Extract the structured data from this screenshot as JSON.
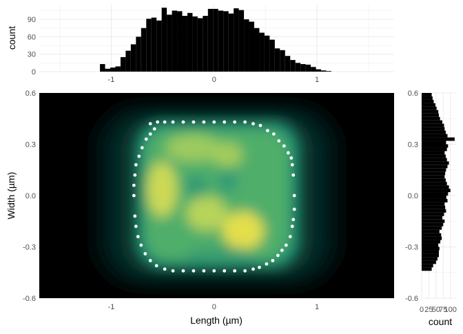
{
  "chart_data": [
    {
      "name": "top-marginal",
      "type": "bar",
      "title": "",
      "xlabel": "",
      "ylabel": "count",
      "xlim": [
        -1.7,
        1.75
      ],
      "ylim": [
        0,
        115
      ],
      "xticks": [
        -1,
        0,
        1
      ],
      "xtick_labels": [
        "-1",
        "0",
        "1"
      ],
      "yticks": [
        0,
        30,
        60,
        90
      ],
      "ytick_labels": [
        "0",
        "30",
        "60",
        "90"
      ],
      "grid": true,
      "bin_edges_start": -1.11,
      "bin_width": 0.05,
      "values": [
        13,
        5,
        7,
        9,
        25,
        36,
        47,
        60,
        75,
        91,
        93,
        88,
        110,
        98,
        105,
        104,
        96,
        101,
        95,
        92,
        96,
        108,
        108,
        105,
        104,
        100,
        109,
        106,
        90,
        86,
        75,
        67,
        62,
        55,
        40,
        37,
        27,
        20,
        15,
        13,
        12,
        8,
        4,
        2,
        1
      ]
    },
    {
      "name": "main-density",
      "type": "heatmap",
      "title": "",
      "xlabel": "Length (µm)",
      "ylabel": "Width (µm)",
      "xlim": [
        -1.7,
        1.75
      ],
      "ylim": [
        -0.6,
        0.6
      ],
      "xticks": [
        -1,
        0,
        1
      ],
      "xtick_labels": [
        "-1",
        "0",
        "1"
      ],
      "yticks": [
        0.6,
        0.3,
        0.0,
        -0.3,
        -0.6
      ],
      "ytick_labels": [
        "0.6",
        "0.3",
        "0.0",
        "-0.3",
        "-0.6"
      ],
      "colormap": [
        "#000000",
        "#0a4a3e",
        "#1f9a78",
        "#5cc06a",
        "#b4d65a",
        "#e8e14a"
      ],
      "outline_points": [
        [
          -0.62,
          0.42
        ],
        [
          -0.55,
          0.43
        ],
        [
          -0.48,
          0.43
        ],
        [
          -0.4,
          0.43
        ],
        [
          -0.3,
          0.43
        ],
        [
          -0.2,
          0.43
        ],
        [
          -0.1,
          0.43
        ],
        [
          0.0,
          0.43
        ],
        [
          0.1,
          0.43
        ],
        [
          0.2,
          0.43
        ],
        [
          0.3,
          0.43
        ],
        [
          0.38,
          0.42
        ],
        [
          0.45,
          0.41
        ],
        [
          0.52,
          0.38
        ],
        [
          0.58,
          0.36
        ],
        [
          0.63,
          0.32
        ],
        [
          0.68,
          0.29
        ],
        [
          0.72,
          0.25
        ],
        [
          0.75,
          0.22
        ],
        [
          0.76,
          0.18
        ],
        [
          0.77,
          0.12
        ],
        [
          0.78,
          0.0
        ],
        [
          0.78,
          -0.08
        ],
        [
          0.77,
          -0.14
        ],
        [
          0.76,
          -0.18
        ],
        [
          0.74,
          -0.24
        ],
        [
          0.7,
          -0.29
        ],
        [
          0.66,
          -0.32
        ],
        [
          0.62,
          -0.35
        ],
        [
          0.57,
          -0.38
        ],
        [
          0.51,
          -0.4
        ],
        [
          0.44,
          -0.42
        ],
        [
          0.38,
          -0.43
        ],
        [
          0.3,
          -0.44
        ],
        [
          0.2,
          -0.44
        ],
        [
          0.1,
          -0.44
        ],
        [
          0.0,
          -0.44
        ],
        [
          -0.1,
          -0.44
        ],
        [
          -0.2,
          -0.44
        ],
        [
          -0.3,
          -0.44
        ],
        [
          -0.4,
          -0.44
        ],
        [
          -0.48,
          -0.43
        ],
        [
          -0.56,
          -0.41
        ],
        [
          -0.62,
          -0.38
        ],
        [
          -0.67,
          -0.34
        ],
        [
          -0.71,
          -0.29
        ],
        [
          -0.74,
          -0.24
        ],
        [
          -0.76,
          -0.18
        ],
        [
          -0.77,
          -0.12
        ],
        [
          -0.78,
          0.0
        ],
        [
          -0.78,
          0.06
        ],
        [
          -0.77,
          0.12
        ],
        [
          -0.76,
          0.18
        ],
        [
          -0.73,
          0.23
        ],
        [
          -0.7,
          0.28
        ],
        [
          -0.66,
          0.33
        ],
        [
          -0.62,
          0.36
        ],
        [
          -0.58,
          0.39
        ]
      ]
    },
    {
      "name": "right-marginal",
      "type": "bar",
      "orientation": "horizontal",
      "title": "",
      "xlabel": "count",
      "ylabel": "",
      "xlim": [
        0,
        120
      ],
      "ylim": [
        -0.6,
        0.6
      ],
      "xticks": [
        0,
        25,
        50,
        75,
        100
      ],
      "xtick_labels": [
        "0",
        "25",
        "50",
        "75",
        "100"
      ],
      "yticks": [
        0.6,
        0.3,
        0.0,
        -0.3,
        -0.6
      ],
      "ytick_labels": [
        "0.6",
        "0.3",
        "0.0",
        "-0.3",
        "-0.6"
      ],
      "grid": true,
      "bin_edges_start": -0.44,
      "bin_width": 0.02,
      "values": [
        35,
        40,
        50,
        55,
        60,
        60,
        62,
        58,
        65,
        70,
        68,
        62,
        70,
        75,
        80,
        72,
        78,
        85,
        82,
        80,
        90,
        86,
        92,
        100,
        95,
        88,
        84,
        80,
        82,
        85,
        90,
        95,
        88,
        84,
        80,
        88,
        92,
        85,
        115,
        90,
        84,
        80,
        78,
        72,
        64,
        60,
        58,
        52,
        48,
        42,
        38,
        35
      ]
    }
  ]
}
